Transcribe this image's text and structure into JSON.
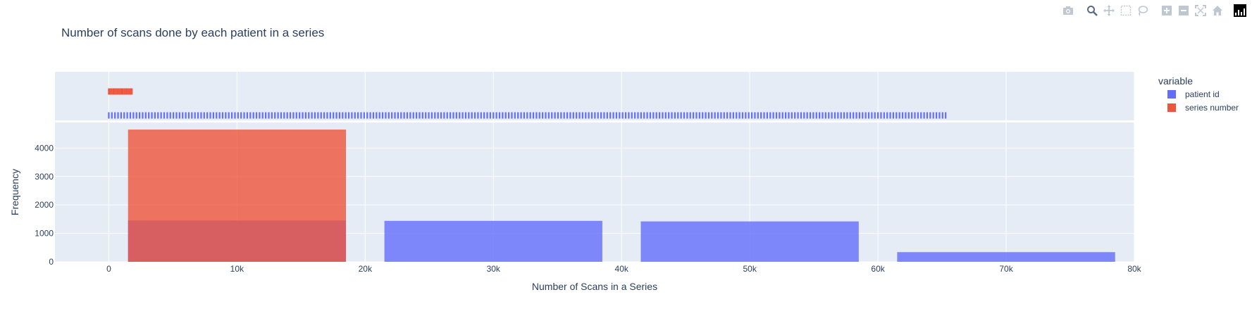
{
  "chart_data": {
    "type": "histogram",
    "title": "Number of scans done by each patient in a series",
    "xlabel": "Number of Scans in a Series",
    "ylabel": "Frequency",
    "xlim": [
      -4200,
      80000
    ],
    "ylim": [
      0,
      4900
    ],
    "x_ticks": [
      0,
      10000,
      20000,
      30000,
      40000,
      50000,
      60000,
      70000,
      80000
    ],
    "x_tick_labels": [
      "0",
      "10k",
      "20k",
      "30k",
      "40k",
      "50k",
      "60k",
      "70k",
      "80k"
    ],
    "y_ticks": [
      0,
      1000,
      2000,
      3000,
      4000
    ],
    "y_tick_labels": [
      "0",
      "1000",
      "2000",
      "3000",
      "4000"
    ],
    "grid": true,
    "barmode": "overlay",
    "legend": {
      "title": "variable",
      "placement": "right"
    },
    "marginal": "rug",
    "series": [
      {
        "name": "patient id",
        "color": "#636efa",
        "bins": [
          {
            "x0": 1500,
            "x1": 18500,
            "count": 1450
          },
          {
            "x0": 21500,
            "x1": 38500,
            "count": 1440
          },
          {
            "x0": 41500,
            "x1": 58500,
            "count": 1420
          },
          {
            "x0": 61500,
            "x1": 78500,
            "count": 340
          }
        ],
        "rug_range": [
          0,
          65500
        ]
      },
      {
        "name": "series number",
        "color": "#ef553b",
        "bins": [
          {
            "x0": 1500,
            "x1": 18500,
            "count": 4650
          }
        ],
        "rug_range": [
          0,
          1800
        ],
        "rug_outlier": 1800
      }
    ]
  },
  "modebar": {
    "buttons": [
      "camera-icon",
      "zoom-icon",
      "pan-icon",
      "box-select-icon",
      "lasso-icon",
      "zoom-in-icon",
      "zoom-out-icon",
      "autoscale-icon",
      "reset-axes-icon",
      "plotly-logo-icon"
    ]
  }
}
